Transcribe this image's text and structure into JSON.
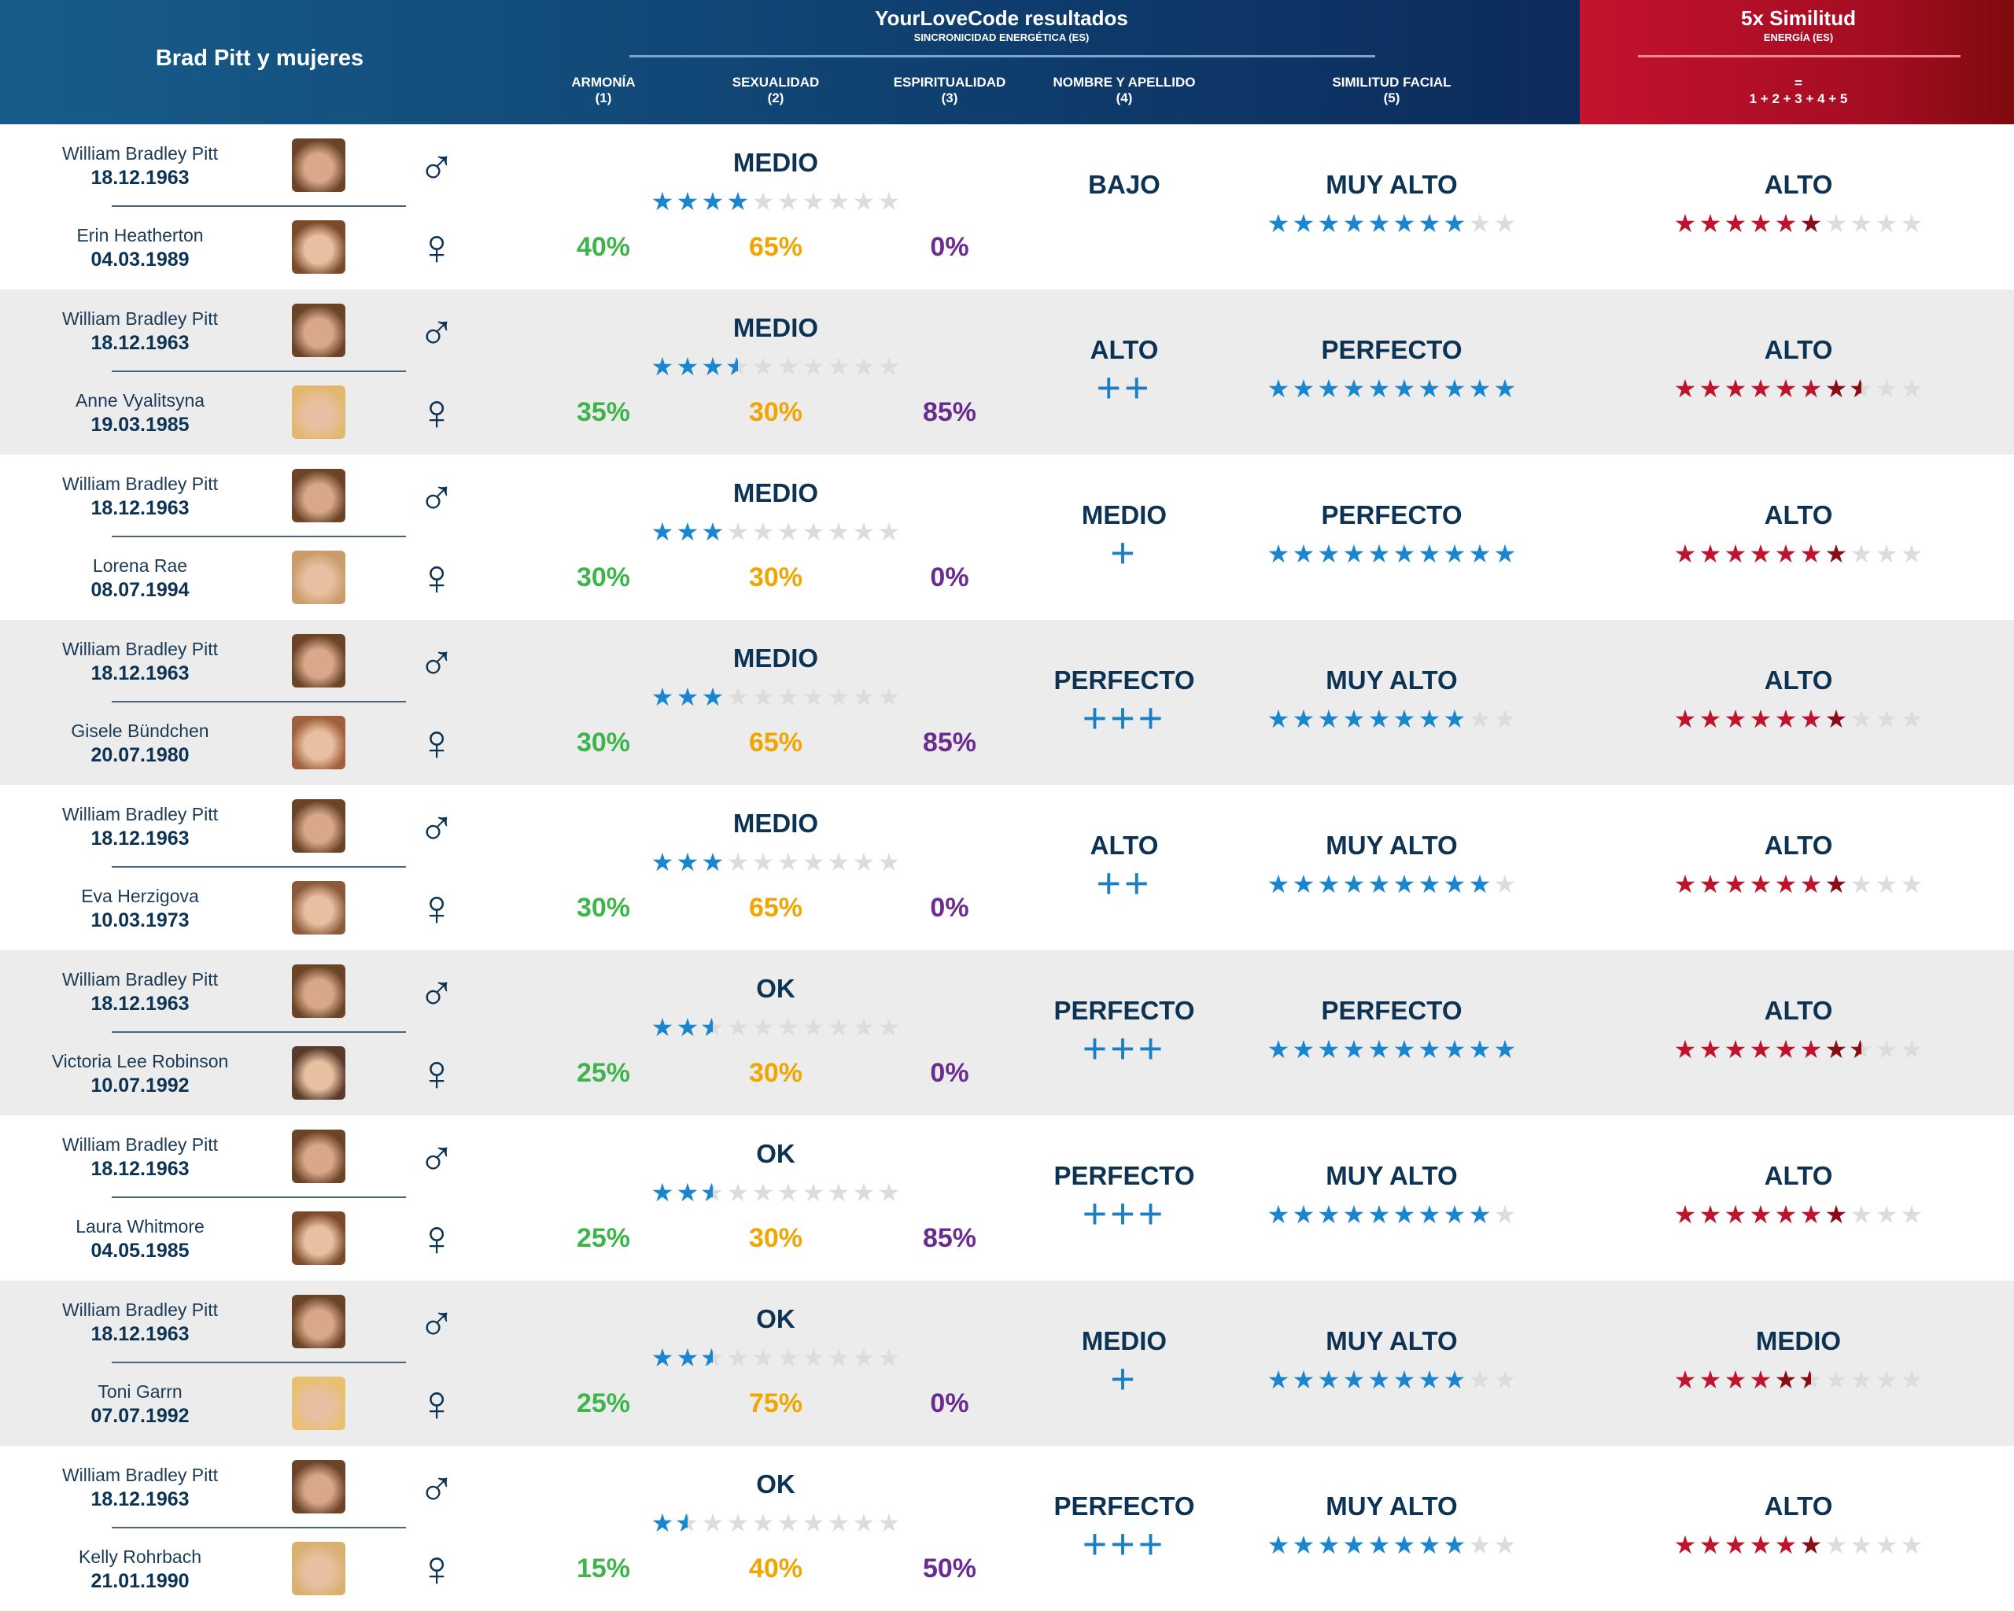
{
  "header": {
    "left_title": "Brad Pitt y mujeres",
    "main_title": "YourLoveCode resultados",
    "main_subtitle": "SINCRONICIDAD ENERGÉTICA (ES)",
    "columns": [
      {
        "label": "ARMONÍA",
        "num": "(1)"
      },
      {
        "label": "SEXUALIDAD",
        "num": "(2)"
      },
      {
        "label": "ESPIRITUALIDAD",
        "num": "(3)"
      },
      {
        "label": "NOMBRE Y APELLIDO",
        "num": "(4)"
      },
      {
        "label": "SIMILITUD FACIAL",
        "num": "(5)"
      }
    ],
    "total_title": "5x Similitud",
    "total_subtitle": "ENERGÍA (ES)",
    "total_eq": "=",
    "total_formula": "1 + 2 + 3 + 4 + 5"
  },
  "colors": {
    "green": "#3db54a",
    "orange": "#f0a500",
    "purple": "#6a2c91",
    "blue_star": "#1a86cf",
    "red_star": "#c0142e",
    "navy": "#0d3354"
  },
  "symbols": {
    "male": "♂",
    "female": "♀",
    "star": "★"
  },
  "rows": [
    {
      "p1": "William Bradley Pitt",
      "d1": "18.12.1963",
      "p2": "Erin Heatherton",
      "d2": "04.03.1989",
      "harmonia": "40%",
      "sex_label": "MEDIO",
      "sex_stars": 4,
      "sexualidad": "65%",
      "espiritualidad": "0%",
      "name_label": "BAJO",
      "name_plus": "",
      "facial_label": "MUY ALTO",
      "facial_stars": 8,
      "total_label": "ALTO",
      "total_stars": 6
    },
    {
      "p1": "William Bradley Pitt",
      "d1": "18.12.1963",
      "p2": "Anne Vyalitsyna",
      "d2": "19.03.1985",
      "harmonia": "35%",
      "sex_label": "MEDIO",
      "sex_stars": 3.5,
      "sexualidad": "30%",
      "espiritualidad": "85%",
      "name_label": "ALTO",
      "name_plus": "++",
      "facial_label": "PERFECTO",
      "facial_stars": 10,
      "total_label": "ALTO",
      "total_stars": 7.5
    },
    {
      "p1": "William Bradley Pitt",
      "d1": "18.12.1963",
      "p2": "Lorena Rae",
      "d2": "08.07.1994",
      "harmonia": "30%",
      "sex_label": "MEDIO",
      "sex_stars": 3,
      "sexualidad": "30%",
      "espiritualidad": "0%",
      "name_label": "MEDIO",
      "name_plus": "+",
      "facial_label": "PERFECTO",
      "facial_stars": 10,
      "total_label": "ALTO",
      "total_stars": 7
    },
    {
      "p1": "William Bradley Pitt",
      "d1": "18.12.1963",
      "p2": "Gisele Bündchen",
      "d2": "20.07.1980",
      "harmonia": "30%",
      "sex_label": "MEDIO",
      "sex_stars": 3,
      "sexualidad": "65%",
      "espiritualidad": "85%",
      "name_label": "PERFECTO",
      "name_plus": "+++",
      "facial_label": "MUY ALTO",
      "facial_stars": 8,
      "total_label": "ALTO",
      "total_stars": 7
    },
    {
      "p1": "William Bradley Pitt",
      "d1": "18.12.1963",
      "p2": "Eva Herzigova",
      "d2": "10.03.1973",
      "harmonia": "30%",
      "sex_label": "MEDIO",
      "sex_stars": 3,
      "sexualidad": "65%",
      "espiritualidad": "0%",
      "name_label": "ALTO",
      "name_plus": "++",
      "facial_label": "MUY ALTO",
      "facial_stars": 9,
      "total_label": "ALTO",
      "total_stars": 7
    },
    {
      "p1": "William Bradley Pitt",
      "d1": "18.12.1963",
      "p2": "Victoria Lee Robinson",
      "d2": "10.07.1992",
      "harmonia": "25%",
      "sex_label": "OK",
      "sex_stars": 2.5,
      "sexualidad": "30%",
      "espiritualidad": "0%",
      "name_label": "PERFECTO",
      "name_plus": "+++",
      "facial_label": "PERFECTO",
      "facial_stars": 10,
      "total_label": "ALTO",
      "total_stars": 7.5
    },
    {
      "p1": "William Bradley Pitt",
      "d1": "18.12.1963",
      "p2": "Laura Whitmore",
      "d2": "04.05.1985",
      "harmonia": "25%",
      "sex_label": "OK",
      "sex_stars": 2.5,
      "sexualidad": "30%",
      "espiritualidad": "85%",
      "name_label": "PERFECTO",
      "name_plus": "+++",
      "facial_label": "MUY ALTO",
      "facial_stars": 9,
      "total_label": "ALTO",
      "total_stars": 7
    },
    {
      "p1": "William Bradley Pitt",
      "d1": "18.12.1963",
      "p2": "Toni Garrn",
      "d2": "07.07.1992",
      "harmonia": "25%",
      "sex_label": "OK",
      "sex_stars": 2.5,
      "sexualidad": "75%",
      "espiritualidad": "0%",
      "name_label": "MEDIO",
      "name_plus": "+",
      "facial_label": "MUY ALTO",
      "facial_stars": 8,
      "total_label": "MEDIO",
      "total_stars": 5.5
    },
    {
      "p1": "William Bradley Pitt",
      "d1": "18.12.1963",
      "p2": "Kelly Rohrbach",
      "d2": "21.01.1990",
      "harmonia": "15%",
      "sex_label": "OK",
      "sex_stars": 1.5,
      "sexualidad": "40%",
      "espiritualidad": "50%",
      "name_label": "PERFECTO",
      "name_plus": "+++",
      "facial_label": "MUY ALTO",
      "facial_stars": 8,
      "total_label": "ALTO",
      "total_stars": 6
    }
  ]
}
